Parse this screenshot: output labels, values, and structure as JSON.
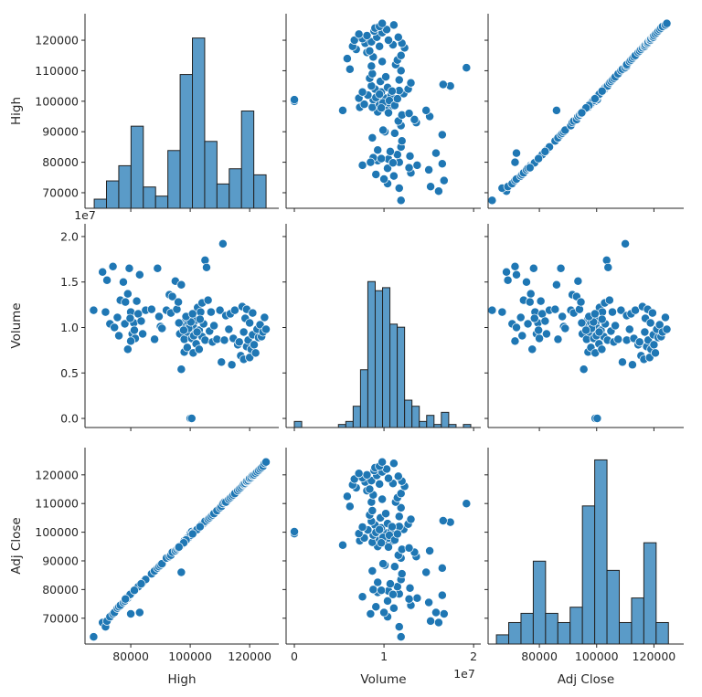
{
  "chart_data": {
    "type": "scatter",
    "kind": "pairplot",
    "variables": [
      "High",
      "Volume",
      "Adj Close"
    ],
    "axes": {
      "high": {
        "label": "High",
        "range": [
          64600,
          129800
        ],
        "yrange": [
          64900,
          128700
        ],
        "xticks": [
          "80000",
          "100000",
          "120000"
        ],
        "yticks": [
          "70000",
          "80000",
          "90000",
          "100000",
          "110000",
          "120000"
        ]
      },
      "volume": {
        "label": "Volume",
        "offset": "1e7",
        "range": [
          -0.092,
          2.08
        ],
        "yrange": [
          -0.1,
          2.14
        ],
        "xticks": [
          "0",
          "1",
          "2"
        ],
        "yticks": [
          "0.0",
          "0.5",
          "1.0",
          "1.5",
          "2.0"
        ]
      },
      "adj": {
        "label": "Adj Close",
        "range": [
          62100,
          130400
        ],
        "yrange": [
          61000,
          129500
        ],
        "xticks": [
          "80000",
          "100000",
          "120000"
        ],
        "yticks": [
          "70000",
          "80000",
          "90000",
          "100000",
          "110000",
          "120000"
        ]
      }
    },
    "point_color": "#1f77b4",
    "bar_color": "#5a9bc8",
    "grid": false,
    "histograms": {
      "high": {
        "bin_start": 67700,
        "bin_width": 4130,
        "counts": [
          3,
          9,
          14,
          27,
          7,
          4,
          19,
          44,
          56,
          22,
          8,
          13,
          32,
          11
        ],
        "ylim": [
          0,
          64
        ]
      },
      "volume": {
        "bin_start": 0,
        "bin_width": 0.082,
        "counts": [
          2,
          0,
          0,
          0,
          0,
          0,
          1,
          2,
          7,
          19,
          48,
          45,
          46,
          34,
          33,
          9,
          7,
          2,
          4,
          1,
          5,
          1,
          0,
          1
        ],
        "ylim": [
          0,
          67
        ]
      },
      "adj": {
        "bin_start": 65000,
        "bin_width": 4290,
        "counts": [
          3,
          7,
          10,
          27,
          10,
          7,
          12,
          45,
          60,
          24,
          7,
          15,
          33,
          7
        ],
        "ylim": [
          0,
          64
        ]
      }
    },
    "columns": [
      "High",
      "Volume (1e7)",
      "Adj Close"
    ],
    "rows": [
      [
        67500,
        1.19,
        63500
      ],
      [
        70500,
        1.61,
        68500
      ],
      [
        71500,
        1.17,
        67000
      ],
      [
        72000,
        1.52,
        69000
      ],
      [
        73000,
        1.04,
        70500
      ],
      [
        74000,
        1.67,
        71500
      ],
      [
        74500,
        1.0,
        72000
      ],
      [
        75500,
        1.11,
        73500
      ],
      [
        76000,
        0.91,
        74000
      ],
      [
        76500,
        1.3,
        74500
      ],
      [
        77500,
        1.5,
        75500
      ],
      [
        78000,
        1.04,
        76000
      ],
      [
        79000,
        1.37,
        77000
      ],
      [
        79000,
        0.76,
        77500
      ],
      [
        79500,
        1.65,
        78000
      ],
      [
        80000,
        1.17,
        78500
      ],
      [
        80500,
        0.93,
        79000
      ],
      [
        81000,
        1.05,
        79500
      ],
      [
        81500,
        0.88,
        80000
      ],
      [
        82000,
        1.29,
        80500
      ],
      [
        82500,
        1.15,
        81000
      ],
      [
        83000,
        1.58,
        72000
      ],
      [
        80000,
        0.85,
        71500
      ],
      [
        84000,
        0.93,
        82500
      ],
      [
        85000,
        1.19,
        83500
      ],
      [
        87000,
        1.2,
        85500
      ],
      [
        88000,
        0.87,
        86500
      ],
      [
        89000,
        1.65,
        87500
      ],
      [
        89500,
        1.12,
        88000
      ],
      [
        90000,
        1.01,
        88500
      ],
      [
        90500,
        0.99,
        89000
      ],
      [
        79800,
        1.1,
        78300
      ],
      [
        81200,
        0.97,
        79700
      ],
      [
        78200,
        1.28,
        76700
      ],
      [
        83500,
        1.07,
        82000
      ],
      [
        92000,
        1.19,
        91000
      ],
      [
        93000,
        1.36,
        91500
      ],
      [
        93500,
        1.16,
        92000
      ],
      [
        94000,
        1.34,
        93000
      ],
      [
        95000,
        1.51,
        93500
      ],
      [
        95500,
        1.2,
        94000
      ],
      [
        96000,
        1.28,
        94500
      ],
      [
        96500,
        0.93,
        95000
      ],
      [
        97000,
        1.47,
        86000
      ],
      [
        97000,
        0.54,
        95500
      ],
      [
        97500,
        1.02,
        96000
      ],
      [
        98000,
        0.87,
        96500
      ],
      [
        98000,
        0.73,
        97000
      ],
      [
        98500,
        1.1,
        97000
      ],
      [
        99000,
        0.95,
        97500
      ],
      [
        99000,
        0.78,
        98000
      ],
      [
        99500,
        1.05,
        98000
      ],
      [
        100000,
        0.0,
        99500
      ],
      [
        100000,
        1.12,
        98500
      ],
      [
        100500,
        0.88,
        99000
      ],
      [
        100500,
        0.0,
        100200
      ],
      [
        101000,
        0.72,
        99500
      ],
      [
        101000,
        1.01,
        99800
      ],
      [
        101500,
        0.93,
        100000
      ],
      [
        102000,
        1.08,
        100500
      ],
      [
        102000,
        0.82,
        100800
      ],
      [
        102500,
        1.22,
        101000
      ],
      [
        103000,
        0.97,
        101500
      ],
      [
        103000,
        0.76,
        101800
      ],
      [
        103500,
        1.17,
        102000
      ],
      [
        104000,
        0.9,
        102500
      ],
      [
        104000,
        1.27,
        102800
      ],
      [
        104500,
        1.04,
        103000
      ],
      [
        105000,
        1.74,
        103500
      ],
      [
        105500,
        1.66,
        104000
      ],
      [
        105000,
        0.86,
        103800
      ],
      [
        106000,
        1.3,
        104500
      ],
      [
        106500,
        0.96,
        105000
      ],
      [
        107000,
        1.17,
        105500
      ],
      [
        107500,
        0.84,
        106000
      ],
      [
        108000,
        1.02,
        106500
      ],
      [
        109000,
        0.87,
        107500
      ],
      [
        110000,
        1.19,
        108500
      ],
      [
        110500,
        0.62,
        109000
      ],
      [
        111000,
        1.92,
        110000
      ],
      [
        111500,
        0.86,
        110500
      ],
      [
        99500,
        0.99,
        98200
      ],
      [
        100200,
        1.06,
        98900
      ],
      [
        101200,
        0.91,
        99900
      ],
      [
        98600,
        1.12,
        97300
      ],
      [
        102300,
        0.95,
        100900
      ],
      [
        103300,
        1.09,
        101900
      ],
      [
        97800,
        0.97,
        96300
      ],
      [
        100800,
        1.15,
        99400
      ],
      [
        96200,
        1.05,
        94800
      ],
      [
        112000,
        1.13,
        110500
      ],
      [
        113000,
        0.98,
        111500
      ],
      [
        113500,
        1.15,
        112000
      ],
      [
        114000,
        0.59,
        112500
      ],
      [
        114500,
        0.88,
        113000
      ],
      [
        115000,
        1.19,
        113500
      ],
      [
        116000,
        0.81,
        114500
      ],
      [
        116500,
        0.84,
        115000
      ],
      [
        117000,
        0.69,
        115500
      ],
      [
        117500,
        1.23,
        116000
      ],
      [
        118000,
        0.65,
        116500
      ],
      [
        118000,
        0.95,
        116800
      ],
      [
        118500,
        1.1,
        117000
      ],
      [
        119000,
        0.79,
        117500
      ],
      [
        119000,
        1.2,
        117800
      ],
      [
        119500,
        0.86,
        118000
      ],
      [
        120000,
        0.67,
        118500
      ],
      [
        120000,
        1.05,
        118800
      ],
      [
        120500,
        0.76,
        119000
      ],
      [
        121000,
        1.16,
        119500
      ],
      [
        121000,
        0.92,
        119800
      ],
      [
        121500,
        0.81,
        120000
      ],
      [
        122000,
        0.72,
        120500
      ],
      [
        122500,
        0.98,
        121000
      ],
      [
        123000,
        0.89,
        121500
      ],
      [
        123500,
        1.03,
        122000
      ],
      [
        124000,
        0.9,
        122500
      ],
      [
        124500,
        0.95,
        123000
      ],
      [
        125000,
        1.11,
        124000
      ],
      [
        125500,
        0.98,
        124500
      ]
    ]
  }
}
